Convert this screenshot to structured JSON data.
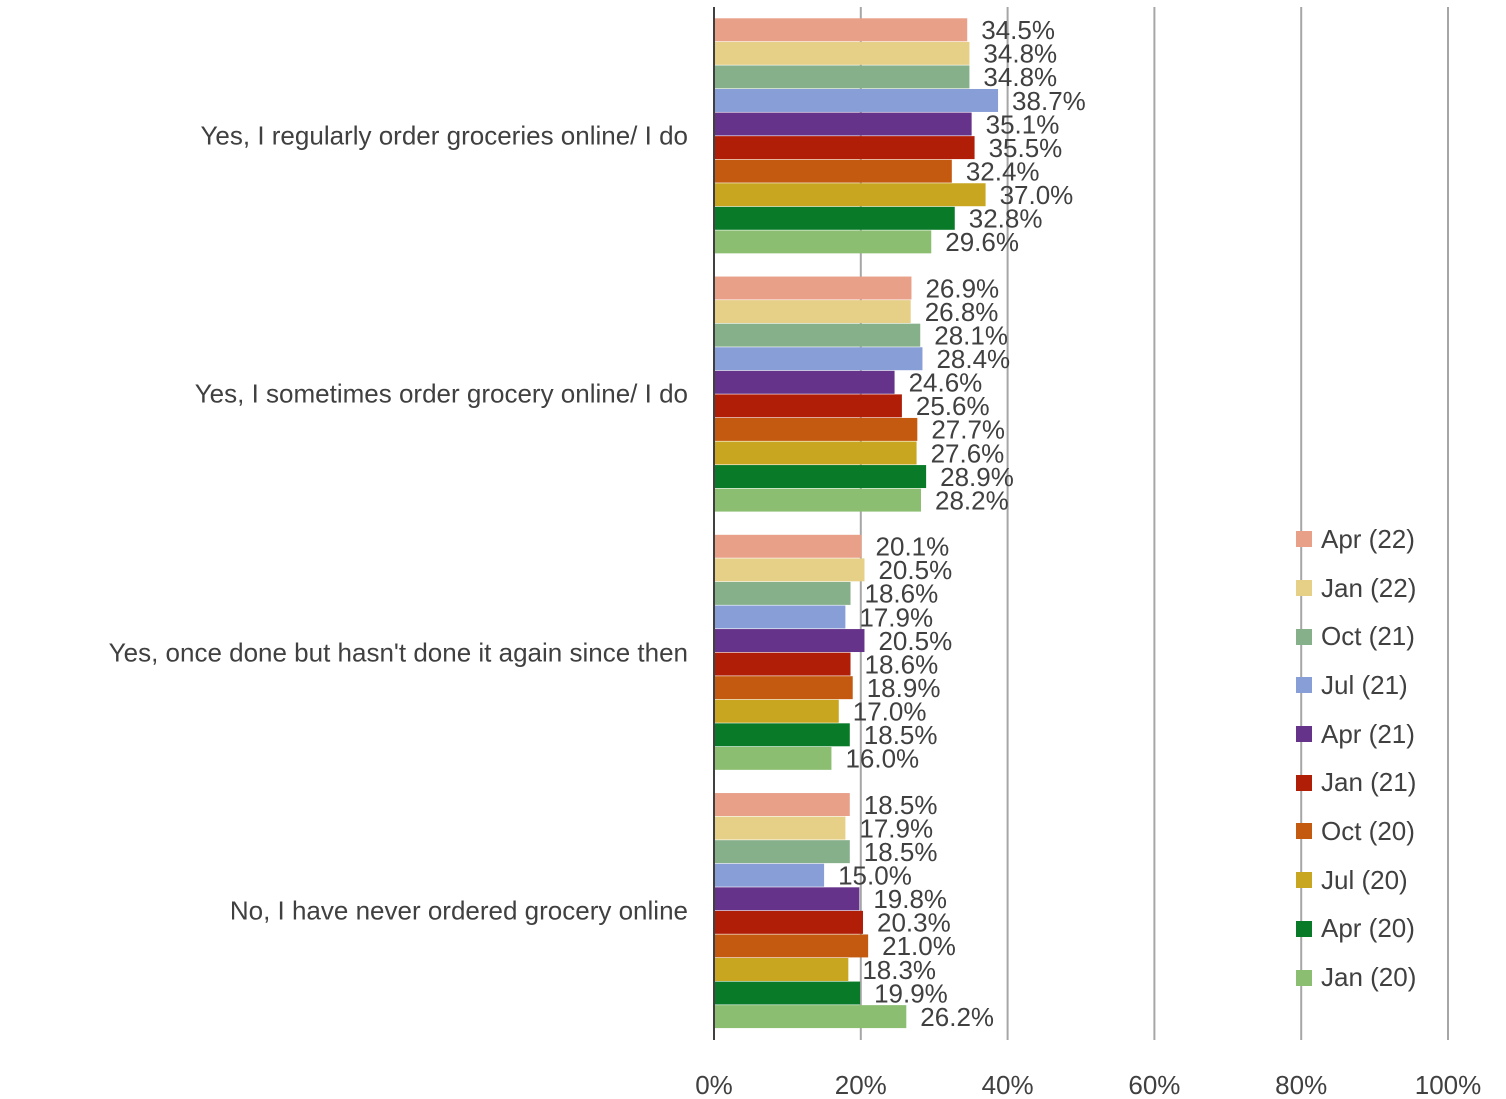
{
  "chart_data": {
    "type": "bar",
    "orientation": "horizontal",
    "categories": [
      "Yes, I regularly order groceries online/ I do",
      "Yes, I sometimes order grocery online/ I do",
      "Yes, once done but hasn't done it again since then",
      "No, I have never ordered grocery online"
    ],
    "series": [
      {
        "name": "Apr (22)",
        "color": "#e8a088",
        "values": [
          34.5,
          26.9,
          20.1,
          18.5
        ],
        "labels": [
          "34.5%",
          "26.9%",
          "20.1%",
          "18.5%"
        ]
      },
      {
        "name": "Jan (22)",
        "color": "#e6d088",
        "values": [
          34.8,
          26.8,
          20.5,
          17.9
        ],
        "labels": [
          "34.8%",
          "26.8%",
          "20.5%",
          "17.9%"
        ]
      },
      {
        "name": "Oct (21)",
        "color": "#86b08a",
        "values": [
          34.8,
          28.1,
          18.6,
          18.5
        ],
        "labels": [
          "34.8%",
          "28.1%",
          "18.6%",
          "18.5%"
        ]
      },
      {
        "name": "Jul (21)",
        "color": "#889ed6",
        "values": [
          38.7,
          28.4,
          17.9,
          15.0
        ],
        "labels": [
          "38.7%",
          "28.4%",
          "17.9%",
          "15.0%"
        ]
      },
      {
        "name": "Apr (21)",
        "color": "#66338a",
        "values": [
          35.1,
          24.6,
          20.5,
          19.8
        ],
        "labels": [
          "35.1%",
          "24.6%",
          "20.5%",
          "19.8%"
        ]
      },
      {
        "name": "Jan (21)",
        "color": "#b01e08",
        "values": [
          35.5,
          25.6,
          18.6,
          20.3
        ],
        "labels": [
          "35.5%",
          "25.6%",
          "18.6%",
          "20.3%"
        ]
      },
      {
        "name": "Oct (20)",
        "color": "#c45a10",
        "values": [
          32.4,
          27.7,
          18.9,
          21.0
        ],
        "labels": [
          "32.4%",
          "27.7%",
          "18.9%",
          "21.0%"
        ]
      },
      {
        "name": "Jul (20)",
        "color": "#c8a620",
        "values": [
          37.0,
          27.6,
          17.0,
          18.3
        ],
        "labels": [
          "37.0%",
          "27.6%",
          "17.0%",
          "18.3%"
        ]
      },
      {
        "name": "Apr (20)",
        "color": "#087a28",
        "values": [
          32.8,
          28.9,
          18.5,
          19.9
        ],
        "labels": [
          "32.8%",
          "28.9%",
          "18.5%",
          "19.9%"
        ]
      },
      {
        "name": "Jan (20)",
        "color": "#8cbe72",
        "values": [
          29.6,
          28.2,
          16.0,
          26.2
        ],
        "labels": [
          "29.6%",
          "28.2%",
          "16.0%",
          "26.2%"
        ]
      }
    ],
    "x_ticks": [
      "0%",
      "20%",
      "40%",
      "60%",
      "80%",
      "100%"
    ],
    "xlim": [
      0,
      100
    ],
    "grid": true,
    "legend_position": "right"
  }
}
